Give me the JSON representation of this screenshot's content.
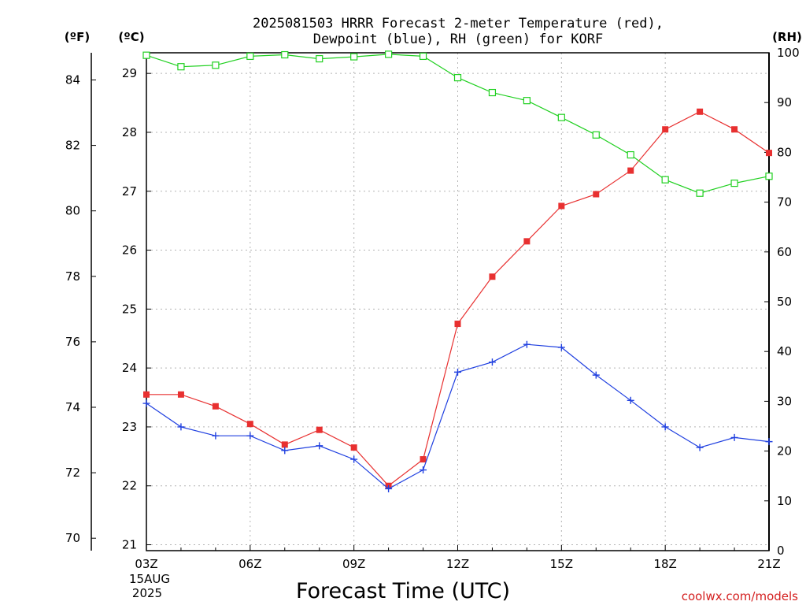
{
  "title_line1": "2025081503 HRRR Forecast 2-meter Temperature (red),",
  "title_line2": "Dewpoint (blue), RH (green) for KORF",
  "unit_f": "(ºF)",
  "unit_c": "(ºC)",
  "unit_rh": "(RH)",
  "xlabel": "Forecast Time (UTC)",
  "date_line1": "15AUG",
  "date_line2": "2025",
  "credit": "coolwx.com/models",
  "colors": {
    "temperature": "#e83030",
    "dewpoint": "#2040e0",
    "rh": "#20d020"
  },
  "chart_data": {
    "type": "line",
    "x": [
      "03Z",
      "04Z",
      "05Z",
      "06Z",
      "07Z",
      "08Z",
      "09Z",
      "10Z",
      "11Z",
      "12Z",
      "13Z",
      "14Z",
      "15Z",
      "16Z",
      "17Z",
      "18Z",
      "19Z",
      "20Z",
      "21Z"
    ],
    "x_tick_labels": [
      "03Z",
      "06Z",
      "09Z",
      "12Z",
      "15Z",
      "18Z",
      "21Z"
    ],
    "y_left_celsius": {
      "range": [
        20.9,
        29.35
      ],
      "ticks": [
        21,
        22,
        23,
        24,
        25,
        26,
        27,
        28,
        29
      ]
    },
    "y_left_fahrenheit": {
      "range": [
        69.62,
        84.83
      ],
      "ticks": [
        70,
        72,
        74,
        76,
        78,
        80,
        82,
        84
      ]
    },
    "y_right_rh": {
      "range": [
        0,
        100
      ],
      "ticks": [
        0,
        10,
        20,
        30,
        40,
        50,
        60,
        70,
        80,
        90,
        100
      ]
    },
    "grid": true,
    "series": [
      {
        "key": "temperature",
        "axis": "celsius",
        "marker": "filled-square",
        "values": [
          23.55,
          23.55,
          23.35,
          23.05,
          22.7,
          22.95,
          22.65,
          22.0,
          22.45,
          24.75,
          25.55,
          26.15,
          26.75,
          26.95,
          27.35,
          28.05,
          28.35,
          28.05,
          27.65
        ]
      },
      {
        "key": "dewpoint",
        "axis": "celsius",
        "marker": "plus",
        "values": [
          23.4,
          23.0,
          22.85,
          22.85,
          22.6,
          22.68,
          22.45,
          21.95,
          22.27,
          23.93,
          24.1,
          24.4,
          24.35,
          23.88,
          23.45,
          23.0,
          22.65,
          22.82,
          22.75
        ]
      },
      {
        "key": "rh",
        "axis": "rh",
        "marker": "open-square",
        "values": [
          99.5,
          97.2,
          97.5,
          99.3,
          99.6,
          98.8,
          99.2,
          99.7,
          99.3,
          95.0,
          92.0,
          90.4,
          87.0,
          83.5,
          79.5,
          74.5,
          71.8,
          73.8,
          75.2
        ]
      }
    ]
  }
}
